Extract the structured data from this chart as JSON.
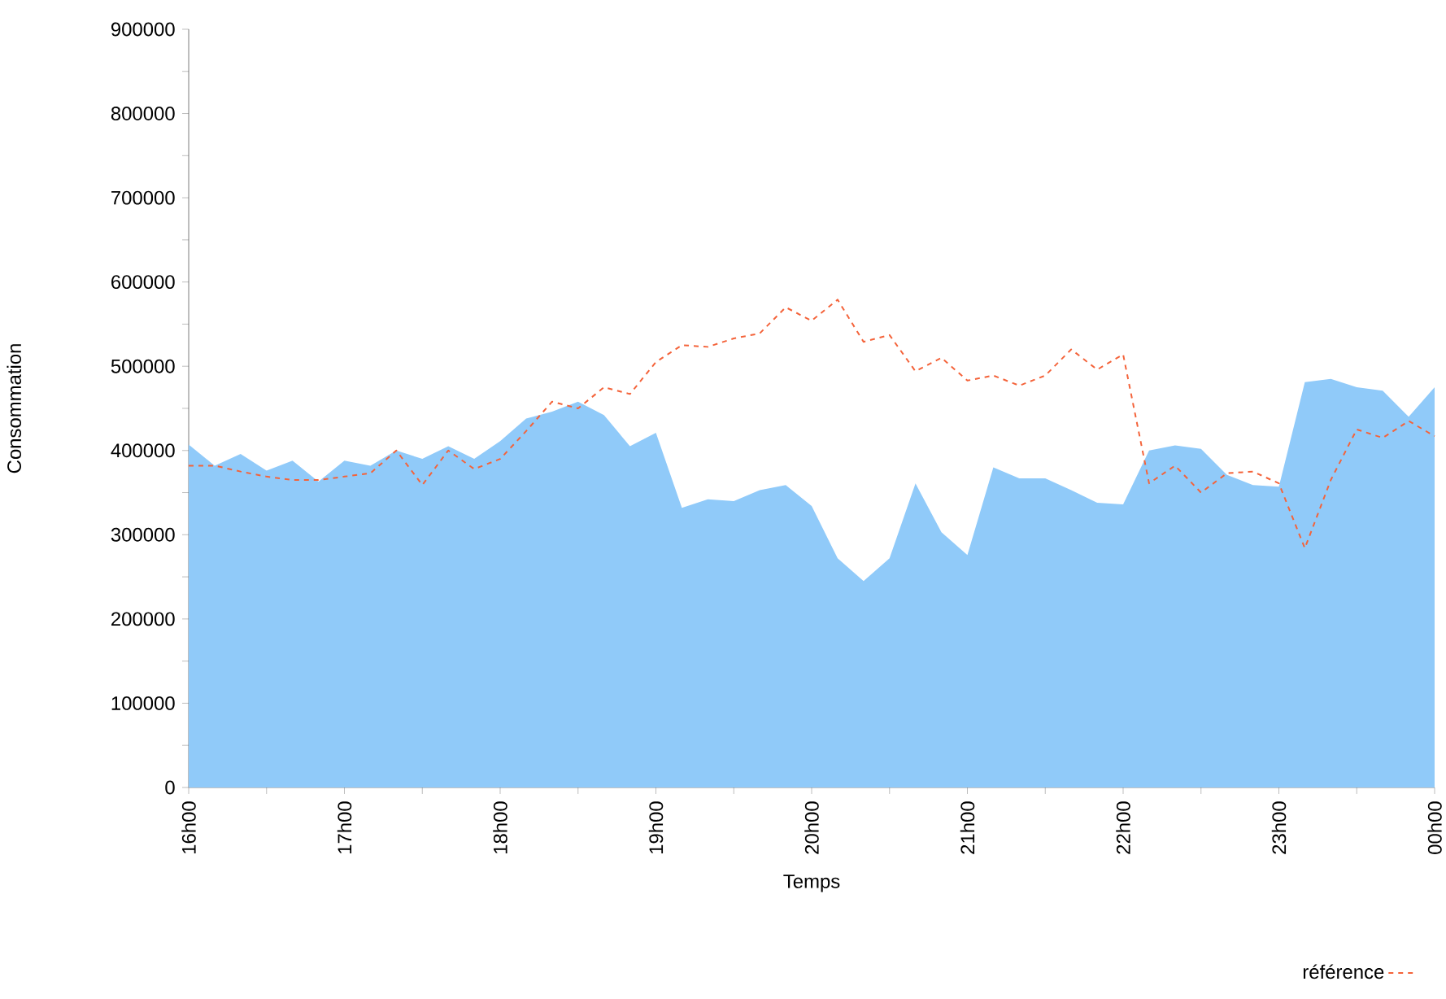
{
  "chart_data": {
    "type": "area",
    "xlabel": "Temps",
    "ylabel": "Consommation",
    "legend": "bottom right",
    "categories": [
      "16h00",
      null,
      null,
      null,
      null,
      null,
      "17h00",
      null,
      null,
      null,
      null,
      null,
      "18h00",
      null,
      null,
      null,
      null,
      null,
      "19h00",
      null,
      null,
      null,
      null,
      null,
      "20h00",
      null,
      null,
      null,
      null,
      null,
      "21h00",
      null,
      null,
      null,
      null,
      null,
      "22h00",
      null,
      null,
      null,
      null,
      null,
      "23h00",
      null,
      null,
      null,
      null,
      null,
      "00h00"
    ],
    "ylim": [
      0,
      900000
    ],
    "yticks": [
      0,
      {
        "value": 50000,
        "label": null
      },
      100000,
      {
        "value": 150000,
        "label": null
      },
      200000,
      {
        "value": 250000,
        "label": null
      },
      300000,
      {
        "value": 350000,
        "label": null
      },
      400000,
      {
        "value": 450000,
        "label": null
      },
      500000,
      {
        "value": 550000,
        "label": null
      },
      600000,
      {
        "value": 650000,
        "label": null
      },
      700000,
      {
        "value": 750000,
        "label": null
      },
      800000,
      {
        "value": 850000,
        "label": null
      },
      900000
    ],
    "series": [
      {
        "color": "#90caf9",
        "values": [
          407000,
          382000,
          396000,
          376000,
          388000,
          363000,
          388000,
          382000,
          400000,
          390000,
          405000,
          390000,
          411000,
          438000,
          446000,
          458000,
          442000,
          405000,
          421000,
          332000,
          342000,
          340000,
          353000,
          359000,
          334000,
          272000,
          245000,
          272000,
          361000,
          303000,
          276000,
          380000,
          367000,
          367000,
          353000,
          338000,
          336000,
          400000,
          406000,
          402000,
          371000,
          359000,
          357000,
          481000,
          485000,
          475000,
          471000,
          440000,
          475000
        ]
      },
      {
        "type": "line",
        "name": "référence",
        "color": "#f4633a",
        "line_style": "dashed",
        "marker": "none",
        "values": [
          382000,
          382000,
          375000,
          369000,
          365000,
          365000,
          369000,
          373000,
          400000,
          359000,
          400000,
          378000,
          390000,
          423000,
          458000,
          450000,
          475000,
          467000,
          505000,
          525000,
          523000,
          533000,
          539000,
          570000,
          554000,
          579000,
          529000,
          537000,
          494000,
          510000,
          483000,
          489000,
          477000,
          489000,
          520000,
          496000,
          514000,
          361000,
          382000,
          350000,
          373000,
          375000,
          361000,
          284000,
          365000,
          425000,
          415000,
          435000,
          417000
        ]
      }
    ]
  }
}
